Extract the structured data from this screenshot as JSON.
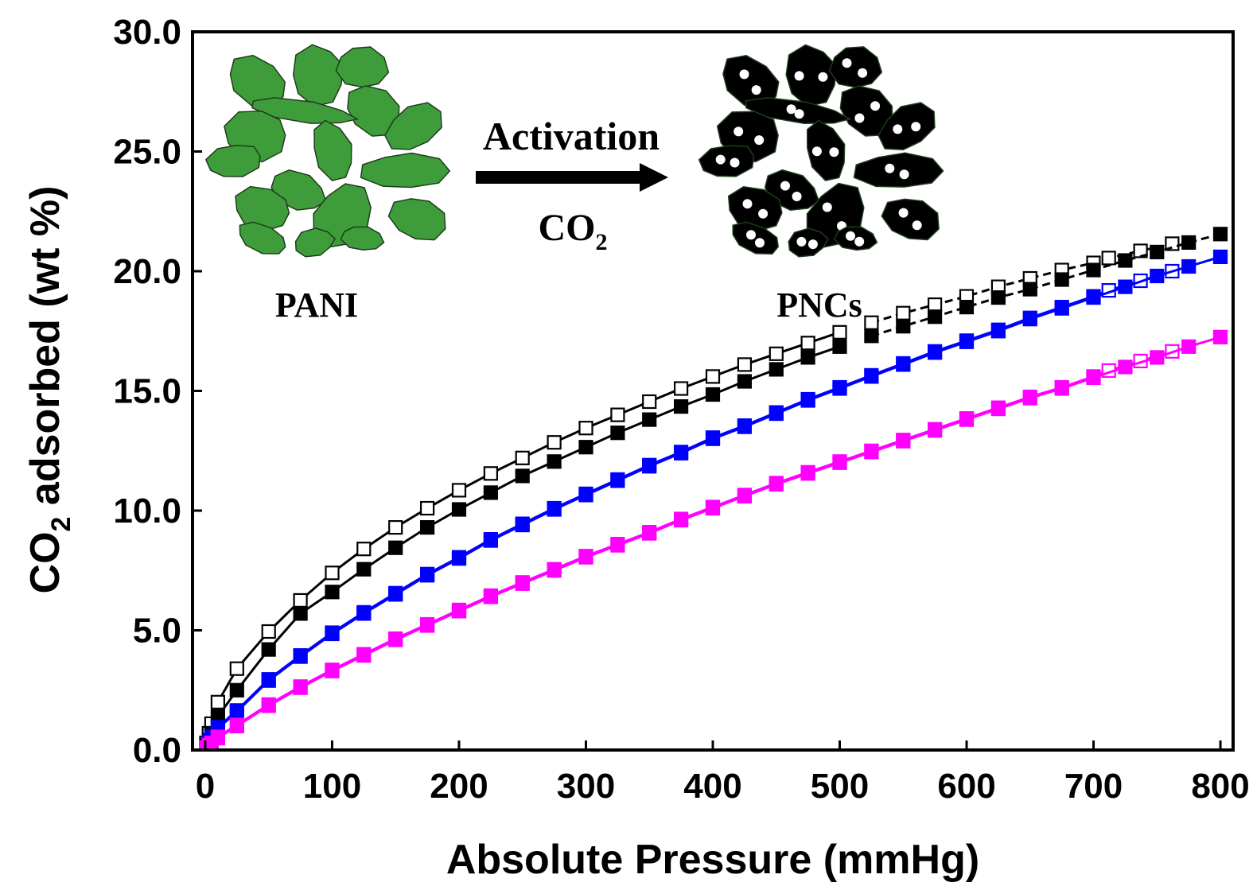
{
  "chart_data": {
    "type": "line",
    "title": "",
    "xlabel": "Absolute Pressure (mmHg)",
    "ylabel": {
      "prefix": "CO",
      "sub": "2",
      "suffix": " adsorbed (wt %)"
    },
    "xlim": [
      -10,
      810
    ],
    "ylim": [
      0,
      30
    ],
    "x_ticks": [
      "0",
      "100",
      "200",
      "300",
      "400",
      "500",
      "600",
      "700",
      "800"
    ],
    "y_ticks": [
      "0.0",
      "5.0",
      "10.0",
      "15.0",
      "20.0",
      "25.0",
      "30.0"
    ],
    "grid": false,
    "legend": "none",
    "series": [
      {
        "color": "#000000",
        "marker": "square-open",
        "line": "solid",
        "x": [
          1,
          3,
          5,
          10,
          25,
          50,
          75,
          100,
          125,
          150,
          175,
          200,
          225,
          250,
          275,
          300,
          325,
          350,
          375,
          400,
          425,
          450,
          475,
          500
        ],
        "y": [
          0.3,
          0.7,
          1.1,
          2.0,
          3.4,
          4.95,
          6.25,
          7.4,
          8.4,
          9.3,
          10.1,
          10.85,
          11.55,
          12.2,
          12.85,
          13.45,
          14.0,
          14.55,
          15.1,
          15.6,
          16.1,
          16.55,
          17.0,
          17.45
        ]
      },
      {
        "color": "#000000",
        "marker": "square-open",
        "line": "dashed",
        "x": [
          525,
          550,
          575,
          600,
          625,
          650,
          675,
          700,
          712,
          737,
          762
        ],
        "y": [
          17.85,
          18.25,
          18.6,
          18.95,
          19.35,
          19.7,
          20.05,
          20.35,
          20.55,
          20.85,
          21.15
        ]
      },
      {
        "color": "#000000",
        "marker": "square-filled",
        "line": "solid",
        "x": [
          1,
          3,
          5,
          10,
          25,
          50,
          75,
          100,
          125,
          150,
          175,
          200,
          225,
          250,
          275,
          300,
          325,
          350,
          375,
          400,
          425,
          450,
          475,
          500
        ],
        "y": [
          0.2,
          0.4,
          0.7,
          1.4,
          2.5,
          4.2,
          5.7,
          6.6,
          7.55,
          8.45,
          9.3,
          10.05,
          10.75,
          11.45,
          12.05,
          12.65,
          13.25,
          13.8,
          14.35,
          14.85,
          15.4,
          15.9,
          16.4,
          16.85
        ]
      },
      {
        "color": "#000000",
        "marker": "square-filled",
        "line": "dashed",
        "x": [
          525,
          550,
          575,
          600,
          625,
          650,
          675,
          700,
          725,
          750,
          775,
          800
        ],
        "y": [
          17.3,
          17.7,
          18.1,
          18.5,
          18.9,
          19.25,
          19.65,
          20.05,
          20.45,
          20.8,
          21.2,
          21.55
        ]
      },
      {
        "color": "#0000ff",
        "marker": "square-open",
        "line": "solid",
        "x": [
          1,
          3,
          5,
          10,
          25,
          50,
          75,
          100,
          125,
          150,
          175,
          200,
          225,
          250,
          275,
          300,
          325,
          350,
          375,
          400,
          425,
          450,
          475,
          500,
          525,
          550,
          575,
          600,
          625,
          650,
          675,
          700,
          712,
          737,
          762
        ],
        "y": [
          0.15,
          0.35,
          0.55,
          0.95,
          1.65,
          2.95,
          3.95,
          4.9,
          5.75,
          6.55,
          7.35,
          8.05,
          8.8,
          9.45,
          10.1,
          10.7,
          11.3,
          11.9,
          12.45,
          13.05,
          13.55,
          14.1,
          14.65,
          15.15,
          15.65,
          16.15,
          16.65,
          17.1,
          17.55,
          18.05,
          18.5,
          18.95,
          19.2,
          19.6,
          20.0
        ]
      },
      {
        "color": "#0000ff",
        "marker": "square-filled",
        "line": "solid",
        "x": [
          1,
          3,
          5,
          10,
          25,
          50,
          75,
          100,
          125,
          150,
          175,
          200,
          225,
          250,
          275,
          300,
          325,
          350,
          375,
          400,
          425,
          450,
          475,
          500,
          525,
          550,
          575,
          600,
          625,
          650,
          675,
          700,
          725,
          750,
          775,
          800
        ],
        "y": [
          0.1,
          0.3,
          0.5,
          0.9,
          1.6,
          2.9,
          3.9,
          4.85,
          5.7,
          6.5,
          7.3,
          8.0,
          8.75,
          9.4,
          10.05,
          10.65,
          11.25,
          11.85,
          12.4,
          13.0,
          13.5,
          14.05,
          14.6,
          15.1,
          15.6,
          16.1,
          16.6,
          17.05,
          17.5,
          18.0,
          18.45,
          18.9,
          19.35,
          19.8,
          20.2,
          20.6
        ]
      },
      {
        "color": "#ff00ff",
        "marker": "square-open",
        "line": "solid",
        "x": [
          1,
          3,
          5,
          10,
          25,
          50,
          75,
          100,
          125,
          150,
          175,
          200,
          225,
          250,
          275,
          300,
          325,
          350,
          375,
          400,
          425,
          450,
          475,
          500,
          525,
          550,
          575,
          600,
          625,
          650,
          675,
          700,
          712,
          737,
          762
        ],
        "y": [
          0.1,
          0.2,
          0.3,
          0.55,
          1.05,
          1.9,
          2.65,
          3.35,
          4.0,
          4.65,
          5.25,
          5.85,
          6.45,
          7.0,
          7.55,
          8.1,
          8.6,
          9.1,
          9.65,
          10.15,
          10.65,
          11.15,
          11.6,
          12.05,
          12.5,
          12.95,
          13.4,
          13.85,
          14.3,
          14.75,
          15.15,
          15.6,
          15.85,
          16.25,
          16.65
        ]
      },
      {
        "color": "#ff00ff",
        "marker": "square-filled",
        "line": "solid",
        "x": [
          1,
          3,
          5,
          10,
          25,
          50,
          75,
          100,
          125,
          150,
          175,
          200,
          225,
          250,
          275,
          300,
          325,
          350,
          375,
          400,
          425,
          450,
          475,
          500,
          525,
          550,
          575,
          600,
          625,
          650,
          675,
          700,
          725,
          750,
          775,
          800
        ],
        "y": [
          0.05,
          0.15,
          0.25,
          0.5,
          1.0,
          1.85,
          2.6,
          3.3,
          3.95,
          4.6,
          5.2,
          5.8,
          6.4,
          6.95,
          7.5,
          8.05,
          8.55,
          9.05,
          9.6,
          10.1,
          10.6,
          11.1,
          11.55,
          12.0,
          12.45,
          12.9,
          13.35,
          13.8,
          14.25,
          14.7,
          15.1,
          15.55,
          16.0,
          16.4,
          16.85,
          17.25
        ]
      }
    ]
  },
  "inset": {
    "left_label": "PANI",
    "right_label": "PNCs",
    "arrow_top": "Activation",
    "arrow_bottom_main": "CO",
    "arrow_bottom_sub": "2",
    "left_fill": "#3e9d3a",
    "right_fill": "#000000"
  }
}
